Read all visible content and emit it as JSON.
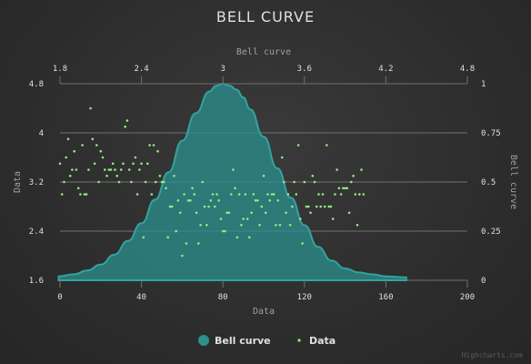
{
  "chart_data": {
    "type": "scatter",
    "title": "BELL CURVE",
    "credits": "Highcharts.com",
    "colors": {
      "bell": "#2b908f",
      "bell_stroke": "#33a3a0",
      "data": "#90ee7e",
      "grid": "#707073",
      "text": "#e0e0e3",
      "axis_title": "#a0a0a3"
    },
    "xAxis": {
      "title": "Data",
      "ticks": [
        0,
        40,
        80,
        120,
        160,
        200
      ],
      "range": [
        0,
        200
      ]
    },
    "xAxis2": {
      "title": "Bell curve",
      "ticks": [
        "1.8",
        "2.4",
        "3",
        "3.6",
        "4.2",
        "4.8"
      ],
      "range": [
        1.8,
        4.8
      ]
    },
    "yAxis": {
      "title": "Data",
      "ticks": [
        "1.6",
        "2.4",
        "3.2",
        "4",
        "4.8"
      ],
      "range": [
        1.6,
        4.8
      ]
    },
    "yAxis2": {
      "title": "Bell curve",
      "ticks": [
        "0",
        "0.25",
        "0.5",
        "0.75",
        "1"
      ],
      "range": [
        0,
        1
      ]
    },
    "legend": {
      "position": "bottom-center",
      "items": [
        "Bell curve",
        "Data"
      ]
    },
    "series": [
      {
        "name": "Bell curve",
        "type": "area",
        "x": [
          1.79,
          1.9,
          2.0,
          2.1,
          2.2,
          2.3,
          2.4,
          2.5,
          2.6,
          2.7,
          2.8,
          2.9,
          2.95,
          3.0,
          3.05,
          3.1,
          3.15,
          3.2,
          3.3,
          3.4,
          3.5,
          3.6,
          3.7,
          3.8,
          3.9,
          4.0,
          4.1,
          4.2,
          4.35
        ],
        "values": [
          0.02,
          0.03,
          0.05,
          0.08,
          0.13,
          0.2,
          0.29,
          0.41,
          0.55,
          0.71,
          0.85,
          0.96,
          0.99,
          1.0,
          0.99,
          0.97,
          0.93,
          0.87,
          0.73,
          0.57,
          0.42,
          0.28,
          0.17,
          0.1,
          0.06,
          0.04,
          0.03,
          0.02,
          0.015
        ]
      },
      {
        "name": "Data",
        "type": "scatter",
        "values": [
          3.5,
          3.0,
          3.2,
          3.6,
          3.9,
          3.3,
          3.4,
          3.7,
          3.4,
          3.1,
          3.0,
          3.8,
          3.0,
          3.0,
          3.4,
          4.4,
          3.9,
          3.5,
          3.8,
          3.2,
          3.7,
          3.6,
          3.4,
          3.3,
          3.4,
          3.4,
          3.5,
          3.4,
          3.3,
          3.2,
          3.4,
          3.5,
          4.1,
          4.2,
          3.4,
          3.2,
          3.5,
          3.6,
          3.0,
          3.4,
          3.5,
          2.3,
          3.2,
          3.5,
          3.8,
          3.0,
          3.8,
          3.2,
          3.7,
          3.3,
          3.2,
          3.2,
          3.1,
          2.3,
          2.8,
          2.8,
          3.3,
          2.4,
          2.9,
          2.7,
          2.0,
          3.0,
          2.2,
          2.9,
          2.9,
          3.1,
          3.0,
          2.7,
          2.2,
          2.5,
          3.2,
          2.8,
          2.5,
          2.8,
          2.9,
          3.0,
          2.8,
          3.0,
          2.9,
          2.6,
          2.4,
          2.4,
          2.7,
          2.7,
          3.0,
          3.4,
          3.1,
          2.3,
          3.0,
          2.5,
          2.6,
          3.0,
          2.6,
          2.3,
          2.7,
          3.0,
          2.9,
          2.9,
          2.5,
          2.8,
          3.3,
          2.7,
          3.0,
          2.9,
          3.0,
          3.0,
          2.5,
          2.9,
          2.5,
          3.6,
          3.2,
          2.7,
          3.0,
          2.5,
          2.8,
          3.2,
          3.0,
          3.8,
          2.6,
          2.2,
          3.2,
          2.8,
          2.8,
          2.7,
          3.3,
          3.2,
          2.8,
          3.0,
          2.8,
          3.0,
          2.8,
          3.8,
          2.8,
          2.8,
          2.6,
          3.0,
          3.4,
          3.1,
          3.0,
          3.1,
          3.1,
          3.1,
          2.7,
          3.2,
          3.3,
          3.0,
          2.5,
          3.0,
          3.4,
          3.0
        ]
      }
    ]
  }
}
